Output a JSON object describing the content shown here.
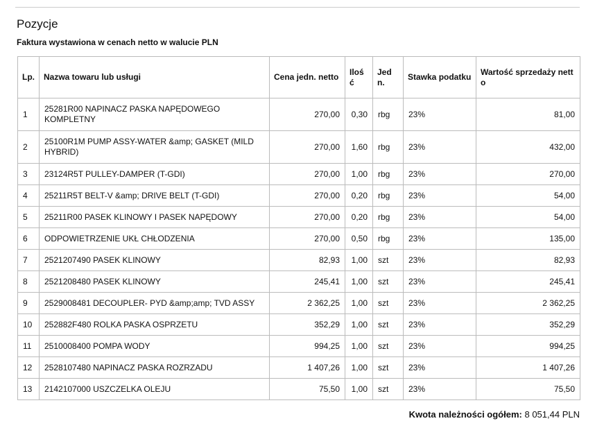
{
  "header": {
    "title": "Pozycje",
    "subtitle": "Faktura wystawiona w cenach netto w walucie PLN"
  },
  "table": {
    "columns": [
      "Lp.",
      "Nazwa towaru lub usługi",
      "Cena jedn. netto",
      "Ilość",
      "Jedn.",
      "Stawka podatku",
      "Wartość sprzedaży netto"
    ],
    "rows": [
      [
        "1",
        "25281R00 NAPINACZ PASKA NAPĘDOWEGO KOMPLETNY",
        "270,00",
        "0,30",
        "rbg",
        "23%",
        "81,00"
      ],
      [
        "2",
        "25100R1M PUMP ASSY-WATER &amp; GASKET (MILD HYBRID)",
        "270,00",
        "1,60",
        "rbg",
        "23%",
        "432,00"
      ],
      [
        "3",
        "23124R5T PULLEY-DAMPER (T-GDI)",
        "270,00",
        "1,00",
        "rbg",
        "23%",
        "270,00"
      ],
      [
        "4",
        "25211R5T BELT-V &amp; DRIVE BELT (T-GDI)",
        "270,00",
        "0,20",
        "rbg",
        "23%",
        "54,00"
      ],
      [
        "5",
        "25211R00 PASEK KLINOWY I PASEK NAPĘDOWY",
        "270,00",
        "0,20",
        "rbg",
        "23%",
        "54,00"
      ],
      [
        "6",
        "ODPOWIETRZENIE UKŁ CHŁODZENIA",
        "270,00",
        "0,50",
        "rbg",
        "23%",
        "135,00"
      ],
      [
        "7",
        "2521207490 PASEK KLINOWY",
        "82,93",
        "1,00",
        "szt",
        "23%",
        "82,93"
      ],
      [
        "8",
        "2521208480 PASEK KLINOWY",
        "245,41",
        "1,00",
        "szt",
        "23%",
        "245,41"
      ],
      [
        "9",
        "2529008481 DECOUPLER- PYD &amp;amp; TVD ASSY",
        "2 362,25",
        "1,00",
        "szt",
        "23%",
        "2 362,25"
      ],
      [
        "10",
        "252882F480 ROLKA PASKA OSPRZETU",
        "352,29",
        "1,00",
        "szt",
        "23%",
        "352,29"
      ],
      [
        "11",
        "2510008400 POMPA WODY",
        "994,25",
        "1,00",
        "szt",
        "23%",
        "994,25"
      ],
      [
        "12",
        "2528107480 NAPINACZ PASKA ROZRZADU",
        "1 407,26",
        "1,00",
        "szt",
        "23%",
        "1 407,26"
      ],
      [
        "13",
        "2142107000 USZCZELKA OLEJU",
        "75,50",
        "1,00",
        "szt",
        "23%",
        "75,50"
      ]
    ]
  },
  "footer": {
    "label": "Kwota należności ogółem:",
    "value": "8 051,44 PLN"
  }
}
